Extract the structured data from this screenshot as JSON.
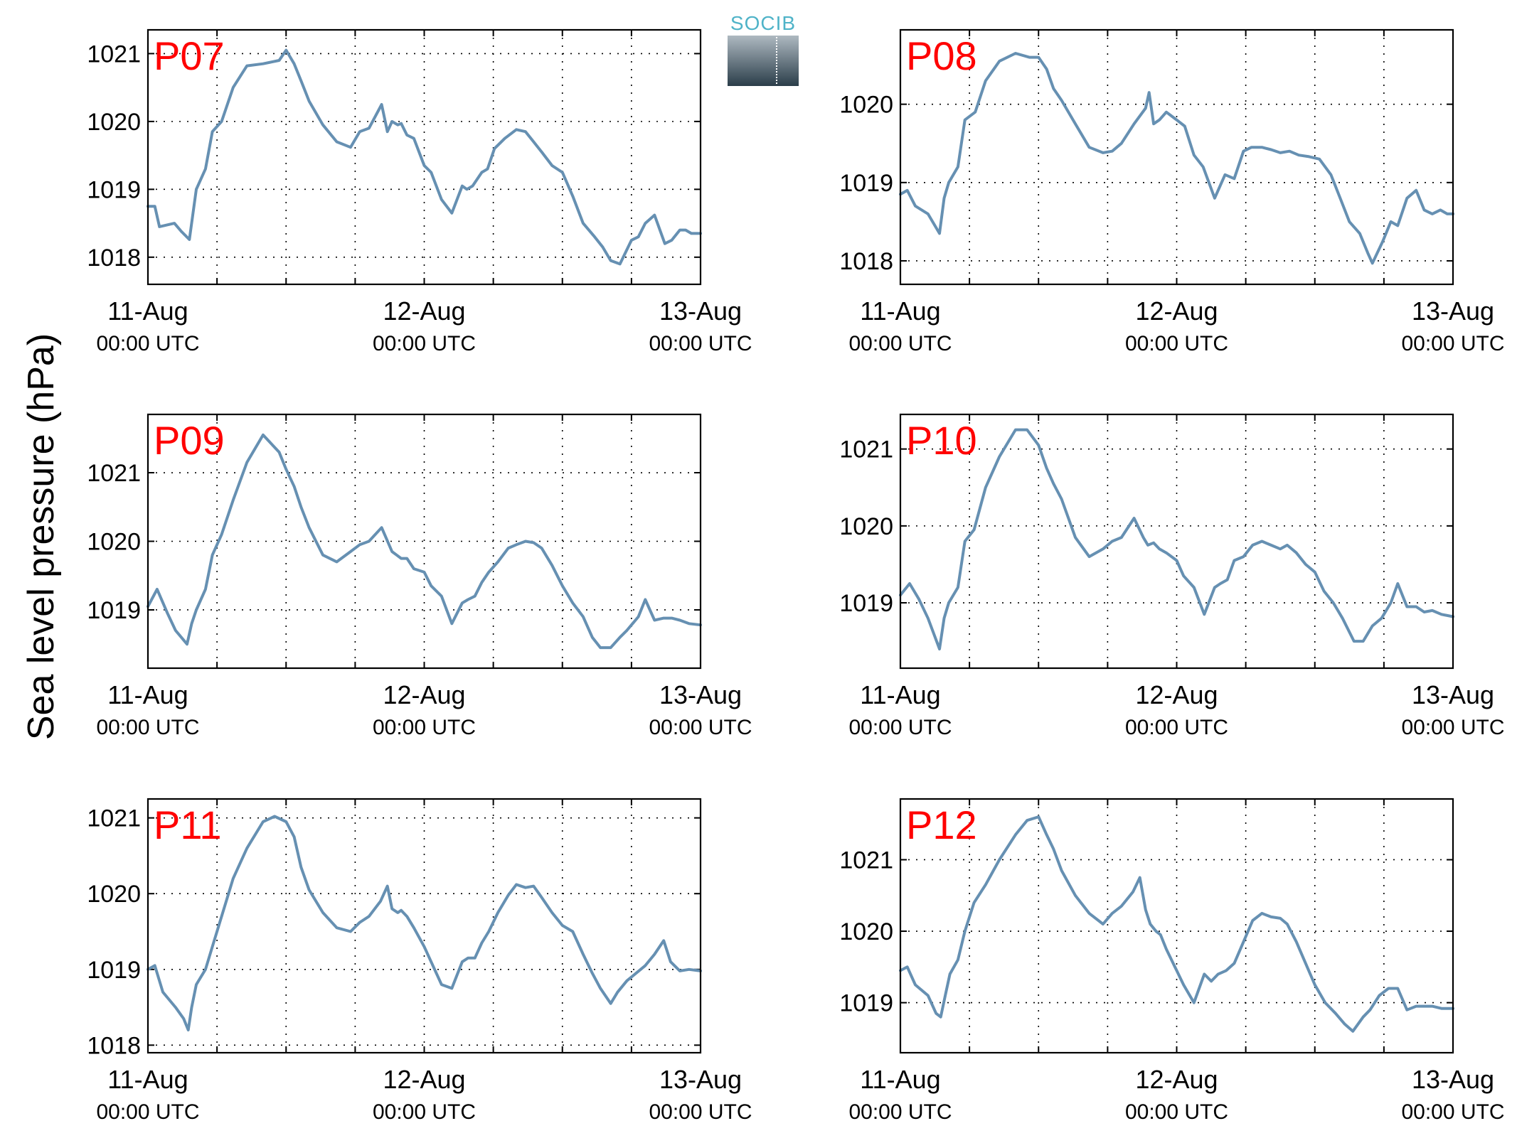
{
  "figure": {
    "ylabel": "Sea level pressure (hPa)",
    "logo_text": "SOCIB",
    "line_color": "#6690b2",
    "label_color": "#ff0000",
    "xtick_dates": [
      "11-Aug",
      "12-Aug",
      "13-Aug"
    ],
    "xtick_times": [
      "00:00 UTC",
      "00:00 UTC",
      "00:00 UTC"
    ]
  },
  "chart_data": [
    {
      "type": "line",
      "title": "P07",
      "xlabel": "",
      "ylabel": "",
      "xlim": [
        0,
        48
      ],
      "ylim": [
        1017.6,
        1021.35
      ],
      "yticks": [
        1018,
        1019,
        1020,
        1021
      ],
      "yticklabels": [
        "1018",
        "1019",
        "1020",
        "1021"
      ],
      "xticks": [
        0,
        24,
        48
      ],
      "xticklabels": [
        "11-Aug 00:00 UTC",
        "12-Aug 00:00 UTC",
        "13-Aug 00:00 UTC"
      ],
      "grid": true,
      "series": [
        {
          "x": [
            0,
            0.6,
            1.0,
            2.3,
            2.9,
            3.6,
            4.2,
            5.0,
            5.6,
            6.4,
            7.4,
            8.6,
            10.0,
            11.4,
            12.0,
            12.7,
            13.3,
            14.0,
            15.2,
            16.4,
            17.6,
            18.4,
            19.2,
            20.3,
            20.8,
            21.2,
            21.7,
            22.0,
            22.5,
            23.1,
            24.0,
            24.6,
            25.5,
            26.4,
            27.3,
            27.7,
            28.2,
            29.0,
            29.5,
            30.1,
            31.0,
            32.0,
            32.8,
            33.5,
            34.2,
            35.1,
            36.0,
            36.9,
            37.8,
            38.8,
            39.5,
            40.2,
            41.0,
            42.0,
            42.6,
            43.2,
            44.0,
            44.9,
            45.5,
            46.2,
            46.7,
            47.2,
            48.0
          ],
          "y": [
            1018.75,
            1018.75,
            1018.45,
            1018.5,
            1018.38,
            1018.26,
            1019.0,
            1019.3,
            1019.85,
            1020.0,
            1020.5,
            1020.82,
            1020.85,
            1020.9,
            1021.05,
            1020.85,
            1020.6,
            1020.3,
            1019.95,
            1019.7,
            1019.62,
            1019.85,
            1019.9,
            1020.25,
            1019.85,
            1020.0,
            1019.95,
            1019.97,
            1019.8,
            1019.75,
            1019.35,
            1019.25,
            1018.85,
            1018.65,
            1019.05,
            1019.0,
            1019.05,
            1019.25,
            1019.3,
            1019.6,
            1019.75,
            1019.88,
            1019.85,
            1019.7,
            1019.55,
            1019.35,
            1019.25,
            1018.9,
            1018.5,
            1018.3,
            1018.15,
            1017.95,
            1017.9,
            1018.25,
            1018.3,
            1018.5,
            1018.62,
            1018.2,
            1018.25,
            1018.4,
            1018.4,
            1018.35,
            1018.35
          ]
        }
      ]
    },
    {
      "type": "line",
      "title": "P08",
      "xlabel": "",
      "ylabel": "",
      "xlim": [
        0,
        48
      ],
      "ylim": [
        1017.7,
        1020.95
      ],
      "yticks": [
        1018,
        1019,
        1020
      ],
      "yticklabels": [
        "1018",
        "1019",
        "1020"
      ],
      "xticks": [
        0,
        24,
        48
      ],
      "xticklabels": [
        "11-Aug 00:00 UTC",
        "12-Aug 00:00 UTC",
        "13-Aug 00:00 UTC"
      ],
      "grid": true,
      "series": [
        {
          "x": [
            0,
            0.6,
            1.3,
            2.4,
            3.4,
            3.8,
            4.2,
            5.0,
            5.6,
            6.5,
            7.4,
            8.6,
            10.0,
            11.2,
            12.0,
            12.7,
            13.3,
            14.0,
            15.2,
            16.4,
            17.6,
            18.4,
            19.2,
            20.3,
            21.3,
            21.6,
            22.0,
            22.5,
            23.1,
            24.0,
            24.7,
            25.5,
            26.3,
            27.3,
            28.2,
            29.0,
            29.8,
            30.5,
            31.4,
            32.2,
            33.0,
            33.8,
            34.6,
            35.5,
            36.4,
            37.4,
            38.2,
            39.0,
            39.9,
            40.6,
            41.0,
            41.9,
            42.6,
            43.2,
            44.0,
            44.8,
            45.5,
            46.2,
            46.9,
            47.5,
            48.0
          ],
          "y": [
            1018.85,
            1018.9,
            1018.7,
            1018.6,
            1018.35,
            1018.8,
            1019.0,
            1019.2,
            1019.8,
            1019.9,
            1020.3,
            1020.55,
            1020.65,
            1020.6,
            1020.6,
            1020.45,
            1020.2,
            1020.05,
            1019.75,
            1019.45,
            1019.38,
            1019.4,
            1019.5,
            1019.75,
            1019.95,
            1020.15,
            1019.75,
            1019.8,
            1019.9,
            1019.8,
            1019.72,
            1019.35,
            1019.2,
            1018.8,
            1019.1,
            1019.05,
            1019.4,
            1019.45,
            1019.45,
            1019.42,
            1019.38,
            1019.4,
            1019.35,
            1019.33,
            1019.3,
            1019.1,
            1018.8,
            1018.5,
            1018.35,
            1018.1,
            1017.97,
            1018.25,
            1018.5,
            1018.45,
            1018.8,
            1018.9,
            1018.65,
            1018.6,
            1018.65,
            1018.6,
            1018.6
          ]
        }
      ]
    },
    {
      "type": "line",
      "title": "P09",
      "xlabel": "",
      "ylabel": "",
      "xlim": [
        0,
        48
      ],
      "ylim": [
        1018.15,
        1021.85
      ],
      "yticks": [
        1019,
        1020,
        1021
      ],
      "yticklabels": [
        "1019",
        "1020",
        "1021"
      ],
      "xticks": [
        0,
        24,
        48
      ],
      "xticklabels": [
        "11-Aug 00:00 UTC",
        "12-Aug 00:00 UTC",
        "13-Aug 00:00 UTC"
      ],
      "grid": true,
      "series": [
        {
          "x": [
            0,
            0.8,
            1.7,
            2.4,
            3.4,
            3.8,
            4.2,
            5.0,
            5.6,
            6.4,
            7.4,
            8.6,
            10.0,
            11.4,
            12.0,
            12.7,
            13.3,
            14.0,
            15.2,
            16.4,
            17.6,
            18.4,
            19.2,
            20.3,
            21.2,
            21.6,
            22.0,
            22.5,
            23.1,
            24.0,
            24.6,
            25.5,
            26.4,
            27.3,
            27.8,
            28.4,
            29.0,
            29.6,
            30.4,
            31.3,
            32.0,
            32.8,
            33.5,
            34.2,
            35.1,
            36.0,
            36.9,
            37.8,
            38.6,
            39.3,
            40.2,
            41.0,
            41.6,
            42.6,
            43.2,
            44.0,
            44.8,
            45.5,
            46.2,
            47.0,
            48.0
          ],
          "y": [
            1019.05,
            1019.3,
            1018.95,
            1018.7,
            1018.5,
            1018.8,
            1019.0,
            1019.3,
            1019.8,
            1020.1,
            1020.6,
            1021.15,
            1021.55,
            1021.3,
            1021.05,
            1020.8,
            1020.5,
            1020.2,
            1019.8,
            1019.7,
            1019.85,
            1019.95,
            1020.0,
            1020.2,
            1019.85,
            1019.8,
            1019.75,
            1019.75,
            1019.6,
            1019.55,
            1019.35,
            1019.2,
            1018.8,
            1019.1,
            1019.15,
            1019.2,
            1019.4,
            1019.55,
            1019.7,
            1019.9,
            1019.95,
            1020.0,
            1019.98,
            1019.9,
            1019.65,
            1019.35,
            1019.1,
            1018.9,
            1018.6,
            1018.45,
            1018.45,
            1018.6,
            1018.7,
            1018.9,
            1019.15,
            1018.85,
            1018.88,
            1018.88,
            1018.85,
            1018.8,
            1018.78
          ]
        }
      ]
    },
    {
      "type": "line",
      "title": "P10",
      "xlabel": "",
      "ylabel": "",
      "xlim": [
        0,
        48
      ],
      "ylim": [
        1018.15,
        1021.45
      ],
      "yticks": [
        1019,
        1020,
        1021
      ],
      "yticklabels": [
        "1019",
        "1020",
        "1021"
      ],
      "xticks": [
        0,
        24,
        48
      ],
      "xticklabels": [
        "11-Aug 00:00 UTC",
        "12-Aug 00:00 UTC",
        "13-Aug 00:00 UTC"
      ],
      "grid": true,
      "series": [
        {
          "x": [
            0,
            0.8,
            1.6,
            2.4,
            3.4,
            3.8,
            4.2,
            5.0,
            5.6,
            6.4,
            7.4,
            8.6,
            10.0,
            11.0,
            12.0,
            12.7,
            13.3,
            14.0,
            15.2,
            16.4,
            17.6,
            18.4,
            19.2,
            20.3,
            21.1,
            21.5,
            22.0,
            22.5,
            23.1,
            24.0,
            24.6,
            25.5,
            26.4,
            27.3,
            27.8,
            28.4,
            29.0,
            29.8,
            30.6,
            31.4,
            32.2,
            33.0,
            33.6,
            34.4,
            35.2,
            36.0,
            36.8,
            37.6,
            38.4,
            39.4,
            40.2,
            41.0,
            41.8,
            42.6,
            43.2,
            44.0,
            44.8,
            45.5,
            46.2,
            47.0,
            48.0
          ],
          "y": [
            1019.1,
            1019.25,
            1019.05,
            1018.8,
            1018.4,
            1018.8,
            1019.0,
            1019.2,
            1019.8,
            1019.95,
            1020.5,
            1020.9,
            1021.25,
            1021.25,
            1021.05,
            1020.75,
            1020.55,
            1020.35,
            1019.85,
            1019.6,
            1019.7,
            1019.8,
            1019.85,
            1020.1,
            1019.85,
            1019.75,
            1019.78,
            1019.7,
            1019.65,
            1019.55,
            1019.35,
            1019.2,
            1018.85,
            1019.2,
            1019.25,
            1019.3,
            1019.55,
            1019.6,
            1019.75,
            1019.8,
            1019.75,
            1019.7,
            1019.75,
            1019.65,
            1019.5,
            1019.4,
            1019.15,
            1019.0,
            1018.8,
            1018.5,
            1018.5,
            1018.7,
            1018.8,
            1019.0,
            1019.25,
            1018.95,
            1018.95,
            1018.88,
            1018.9,
            1018.85,
            1018.82
          ]
        }
      ]
    },
    {
      "type": "line",
      "title": "P11",
      "xlabel": "",
      "ylabel": "",
      "xlim": [
        0,
        48
      ],
      "ylim": [
        1017.9,
        1021.25
      ],
      "yticks": [
        1018,
        1019,
        1020,
        1021
      ],
      "yticklabels": [
        "1018",
        "1019",
        "1020",
        "1021"
      ],
      "xticks": [
        0,
        24,
        48
      ],
      "xticklabels": [
        "11-Aug 00:00 UTC",
        "12-Aug 00:00 UTC",
        "13-Aug 00:00 UTC"
      ],
      "grid": true,
      "series": [
        {
          "x": [
            0,
            0.6,
            1.3,
            2.4,
            3.1,
            3.5,
            3.8,
            4.2,
            5.0,
            5.6,
            6.4,
            7.4,
            8.6,
            10.0,
            11.0,
            12.0,
            12.7,
            13.3,
            14.0,
            15.2,
            16.4,
            17.6,
            18.4,
            19.2,
            20.2,
            20.8,
            21.2,
            21.7,
            22.0,
            22.5,
            23.1,
            24.0,
            24.6,
            25.5,
            26.4,
            27.3,
            27.8,
            28.4,
            29.0,
            29.6,
            30.4,
            31.3,
            32.0,
            32.8,
            33.5,
            34.2,
            35.1,
            36.0,
            36.9,
            37.8,
            38.6,
            39.3,
            40.2,
            40.8,
            41.6,
            42.4,
            43.2,
            44.0,
            44.8,
            45.4,
            46.2,
            47.0,
            48.0
          ],
          "y": [
            1019.0,
            1019.05,
            1018.7,
            1018.5,
            1018.35,
            1018.2,
            1018.5,
            1018.8,
            1019.0,
            1019.3,
            1019.7,
            1020.2,
            1020.6,
            1020.95,
            1021.02,
            1020.95,
            1020.75,
            1020.35,
            1020.05,
            1019.75,
            1019.55,
            1019.5,
            1019.62,
            1019.7,
            1019.9,
            1020.1,
            1019.8,
            1019.75,
            1019.78,
            1019.7,
            1019.55,
            1019.3,
            1019.1,
            1018.8,
            1018.75,
            1019.1,
            1019.15,
            1019.15,
            1019.35,
            1019.5,
            1019.75,
            1019.98,
            1020.12,
            1020.08,
            1020.1,
            1019.95,
            1019.75,
            1019.58,
            1019.5,
            1019.2,
            1018.95,
            1018.75,
            1018.55,
            1018.7,
            1018.85,
            1018.95,
            1019.05,
            1019.2,
            1019.38,
            1019.1,
            1018.98,
            1019.0,
            1018.98
          ]
        }
      ]
    },
    {
      "type": "line",
      "title": "P12",
      "xlabel": "",
      "ylabel": "",
      "xlim": [
        0,
        48
      ],
      "ylim": [
        1018.3,
        1021.85
      ],
      "yticks": [
        1019,
        1020,
        1021
      ],
      "yticklabels": [
        "1019",
        "1020",
        "1021"
      ],
      "xticks": [
        0,
        24,
        48
      ],
      "xticklabels": [
        "11-Aug 00:00 UTC",
        "12-Aug 00:00 UTC",
        "13-Aug 00:00 UTC"
      ],
      "grid": true,
      "series": [
        {
          "x": [
            0,
            0.6,
            1.3,
            2.4,
            3.1,
            3.5,
            3.9,
            4.3,
            5.0,
            5.6,
            6.4,
            7.4,
            8.6,
            10.0,
            11.0,
            12.0,
            12.7,
            13.3,
            14.0,
            15.2,
            16.4,
            17.6,
            18.4,
            19.2,
            20.2,
            20.8,
            21.3,
            21.7,
            22.2,
            22.6,
            23.1,
            24.0,
            24.6,
            25.5,
            26.4,
            27.0,
            27.6,
            28.3,
            29.0,
            29.8,
            30.6,
            31.4,
            32.2,
            33.0,
            33.6,
            34.4,
            35.2,
            36.0,
            36.9,
            37.8,
            38.6,
            39.3,
            40.2,
            40.8,
            41.6,
            42.4,
            43.2,
            44.0,
            44.8,
            45.5,
            46.2,
            47.0,
            48.0
          ],
          "y": [
            1019.45,
            1019.5,
            1019.25,
            1019.1,
            1018.85,
            1018.8,
            1019.1,
            1019.4,
            1019.6,
            1020.0,
            1020.4,
            1020.65,
            1021.0,
            1021.35,
            1021.55,
            1021.6,
            1021.35,
            1021.15,
            1020.85,
            1020.5,
            1020.25,
            1020.1,
            1020.25,
            1020.35,
            1020.55,
            1020.75,
            1020.3,
            1020.1,
            1020.0,
            1019.95,
            1019.75,
            1019.45,
            1019.25,
            1019.0,
            1019.4,
            1019.3,
            1019.4,
            1019.45,
            1019.55,
            1019.85,
            1020.15,
            1020.25,
            1020.2,
            1020.18,
            1020.1,
            1019.85,
            1019.55,
            1019.25,
            1019.0,
            1018.85,
            1018.7,
            1018.6,
            1018.8,
            1018.9,
            1019.1,
            1019.2,
            1019.2,
            1018.9,
            1018.95,
            1018.95,
            1018.95,
            1018.92,
            1018.92
          ]
        }
      ]
    }
  ]
}
